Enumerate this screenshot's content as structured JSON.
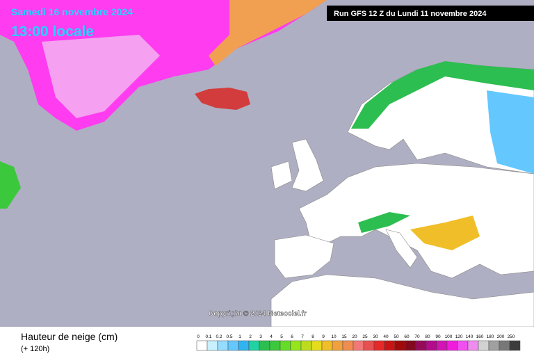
{
  "header": {
    "date": "Samedi 16 novembre 2024",
    "time": "13:00 locale",
    "run": "Run GFS 12 Z du Lundi 11 novembre 2024"
  },
  "copyright": "Copyright © 2024 Meteociel.fr",
  "legend": {
    "title": "Hauteur de neige (cm)",
    "subtitle": "(+ 120h)",
    "ticks": [
      0,
      0.1,
      0.2,
      0.5,
      1,
      2,
      3,
      4,
      5,
      6,
      7,
      8,
      9,
      10,
      15,
      20,
      25,
      30,
      40,
      50,
      60,
      70,
      80,
      90,
      100,
      120,
      140,
      160,
      180,
      200,
      250
    ],
    "colors": [
      "#ffffff",
      "#c8f0ff",
      "#96dcff",
      "#64c8ff",
      "#30b4f0",
      "#22d2a0",
      "#2cbe50",
      "#3cc83c",
      "#64dc28",
      "#96e61e",
      "#bedc1e",
      "#e6dc1e",
      "#f0be28",
      "#f0a03c",
      "#f08c50",
      "#f07878",
      "#e65050",
      "#e62828",
      "#c81414",
      "#a00a0a",
      "#820a1e",
      "#960a5a",
      "#b40a8c",
      "#d214b4",
      "#f01edc",
      "#f050f0",
      "#f08cf0",
      "#d2d2d2",
      "#a0a0a0",
      "#787878",
      "#3c3c3c"
    ]
  }
}
